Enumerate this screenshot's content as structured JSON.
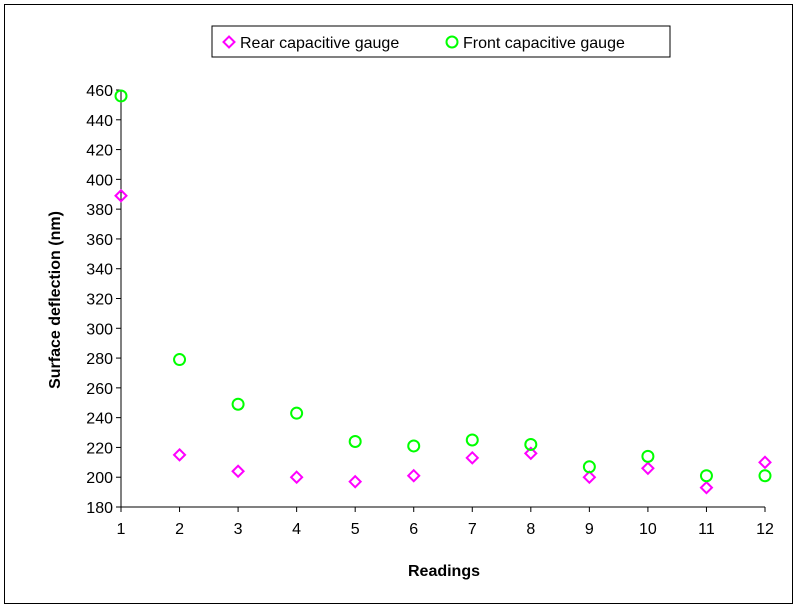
{
  "chart_data": {
    "type": "scatter",
    "xlabel": "Readings",
    "ylabel": "Surface deflection (nm)",
    "xlim": [
      1,
      12
    ],
    "ylim": [
      180,
      460
    ],
    "x_ticks": [
      "1",
      "2",
      "3",
      "4",
      "5",
      "6",
      "7",
      "8",
      "9",
      "10",
      "11",
      "12"
    ],
    "y_ticks": [
      "180",
      "200",
      "220",
      "240",
      "260",
      "280",
      "300",
      "320",
      "340",
      "360",
      "380",
      "400",
      "420",
      "440",
      "460"
    ],
    "legend_position": "top",
    "grid": false,
    "series": [
      {
        "name": "Rear capacitive gauge",
        "marker": "diamond",
        "color": "#ff00ff",
        "x": [
          1,
          2,
          3,
          4,
          5,
          6,
          7,
          8,
          9,
          10,
          11,
          12
        ],
        "y": [
          389,
          215,
          204,
          200,
          197,
          201,
          213,
          216,
          200,
          206,
          193,
          210
        ]
      },
      {
        "name": "Front capacitive gauge",
        "marker": "circle",
        "color": "#00ff00",
        "x": [
          1,
          2,
          3,
          4,
          5,
          6,
          7,
          8,
          9,
          10,
          11,
          12
        ],
        "y": [
          456,
          279,
          249,
          243,
          224,
          221,
          225,
          222,
          207,
          214,
          201,
          201
        ]
      }
    ]
  }
}
